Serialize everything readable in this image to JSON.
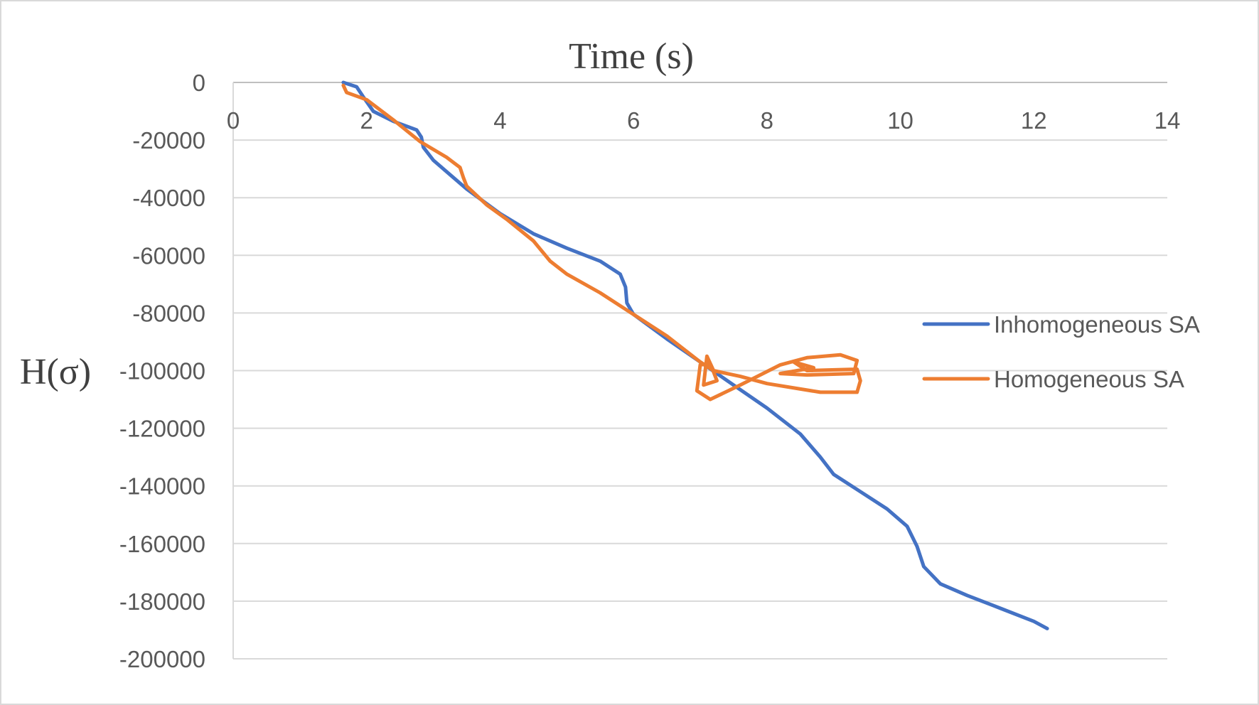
{
  "chart_data": {
    "type": "line",
    "xlabel": "Time (s)",
    "ylabel": "H(σ)",
    "xlim": [
      0,
      14
    ],
    "ylim": [
      -200000,
      0
    ],
    "x_ticks": [
      0,
      2,
      4,
      6,
      8,
      10,
      12,
      14
    ],
    "y_ticks": [
      0,
      -20000,
      -40000,
      -60000,
      -80000,
      -100000,
      -120000,
      -140000,
      -160000,
      -180000,
      -200000
    ],
    "grid": "horizontal",
    "legend_position": "right",
    "series": [
      {
        "name": "Inhomogeneous SA",
        "color": "#4472C4",
        "points": [
          [
            1.65,
            0
          ],
          [
            1.85,
            -1500
          ],
          [
            1.95,
            -5000
          ],
          [
            2.1,
            -10000
          ],
          [
            2.4,
            -13500
          ],
          [
            2.75,
            -16500
          ],
          [
            2.82,
            -19000
          ],
          [
            2.85,
            -22500
          ],
          [
            3.0,
            -27000
          ],
          [
            3.5,
            -37000
          ],
          [
            4.0,
            -45500
          ],
          [
            4.5,
            -52500
          ],
          [
            5.0,
            -57500
          ],
          [
            5.5,
            -62000
          ],
          [
            5.8,
            -66500
          ],
          [
            5.88,
            -71000
          ],
          [
            5.9,
            -76500
          ],
          [
            6.0,
            -80500
          ],
          [
            6.5,
            -89000
          ],
          [
            7.0,
            -97000
          ],
          [
            7.5,
            -105000
          ],
          [
            8.0,
            -113000
          ],
          [
            8.5,
            -122000
          ],
          [
            8.8,
            -130000
          ],
          [
            9.0,
            -136000
          ],
          [
            9.4,
            -142000
          ],
          [
            9.8,
            -148000
          ],
          [
            10.1,
            -154000
          ],
          [
            10.25,
            -161000
          ],
          [
            10.35,
            -168000
          ],
          [
            10.6,
            -174000
          ],
          [
            11.0,
            -178000
          ],
          [
            11.5,
            -182500
          ],
          [
            12.0,
            -187000
          ],
          [
            12.2,
            -189500
          ]
        ]
      },
      {
        "name": "Homogeneous SA",
        "color": "#ED7D31",
        "points": [
          [
            1.65,
            -1000
          ],
          [
            1.7,
            -3500
          ],
          [
            2.0,
            -6000
          ],
          [
            2.4,
            -13000
          ],
          [
            2.8,
            -20500
          ],
          [
            3.2,
            -26000
          ],
          [
            3.4,
            -29500
          ],
          [
            3.45,
            -33000
          ],
          [
            3.5,
            -36000
          ],
          [
            3.8,
            -42500
          ],
          [
            4.1,
            -47500
          ],
          [
            4.5,
            -55000
          ],
          [
            4.75,
            -62000
          ],
          [
            5.0,
            -66500
          ],
          [
            5.5,
            -73000
          ],
          [
            6.0,
            -80500
          ],
          [
            6.5,
            -88000
          ],
          [
            7.0,
            -97000
          ],
          [
            7.2,
            -100000
          ],
          [
            7.1,
            -95000
          ],
          [
            7.05,
            -105000
          ],
          [
            7.25,
            -103500
          ],
          [
            7.15,
            -97500
          ],
          [
            7.0,
            -98000
          ],
          [
            6.95,
            -107000
          ],
          [
            7.15,
            -110000
          ],
          [
            7.6,
            -105000
          ],
          [
            8.2,
            -98000
          ],
          [
            8.6,
            -95500
          ],
          [
            9.1,
            -94500
          ],
          [
            9.35,
            -96500
          ],
          [
            9.3,
            -101000
          ],
          [
            8.6,
            -101500
          ],
          [
            8.2,
            -101000
          ],
          [
            8.7,
            -99000
          ],
          [
            8.4,
            -97000
          ],
          [
            8.6,
            -100000
          ],
          [
            9.35,
            -99500
          ],
          [
            9.4,
            -103500
          ],
          [
            9.35,
            -107500
          ],
          [
            8.8,
            -107500
          ],
          [
            8.0,
            -104500
          ],
          [
            7.6,
            -102000
          ],
          [
            7.2,
            -100000
          ]
        ]
      }
    ]
  }
}
